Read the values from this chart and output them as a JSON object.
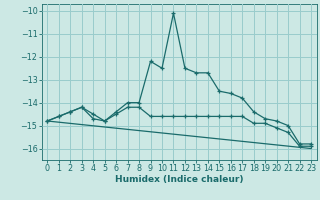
{
  "xlabel": "Humidex (Indice chaleur)",
  "background_color": "#cce8e4",
  "grid_color": "#99cccc",
  "line_color": "#1a6b6b",
  "xlim": [
    -0.5,
    23.5
  ],
  "ylim": [
    -16.5,
    -9.7
  ],
  "yticks": [
    -16,
    -15,
    -14,
    -13,
    -12,
    -11,
    -10
  ],
  "xticks": [
    0,
    1,
    2,
    3,
    4,
    5,
    6,
    7,
    8,
    9,
    10,
    11,
    12,
    13,
    14,
    15,
    16,
    17,
    18,
    19,
    20,
    21,
    22,
    23
  ],
  "series1_x": [
    0,
    1,
    2,
    3,
    4,
    5,
    6,
    7,
    8,
    9,
    10,
    11,
    12,
    13,
    14,
    15,
    16,
    17,
    18,
    19,
    20,
    21,
    22,
    23
  ],
  "series1_y": [
    -14.8,
    -14.6,
    -14.4,
    -14.2,
    -14.5,
    -14.8,
    -14.4,
    -14.0,
    -14.0,
    -12.2,
    -12.5,
    -10.1,
    -12.5,
    -12.7,
    -12.7,
    -13.5,
    -13.6,
    -13.8,
    -14.4,
    -14.7,
    -14.8,
    -15.0,
    -15.8,
    -15.8
  ],
  "series2_x": [
    0,
    1,
    2,
    3,
    4,
    5,
    6,
    7,
    8,
    9,
    10,
    11,
    12,
    13,
    14,
    15,
    16,
    17,
    18,
    19,
    20,
    21,
    22,
    23
  ],
  "series2_y": [
    -14.8,
    -14.6,
    -14.4,
    -14.2,
    -14.7,
    -14.8,
    -14.5,
    -14.2,
    -14.2,
    -14.6,
    -14.6,
    -14.6,
    -14.6,
    -14.6,
    -14.6,
    -14.6,
    -14.6,
    -14.6,
    -14.9,
    -14.9,
    -15.1,
    -15.3,
    -15.9,
    -15.9
  ],
  "series3_x": [
    0,
    23
  ],
  "series3_y": [
    -14.8,
    -16.0
  ]
}
